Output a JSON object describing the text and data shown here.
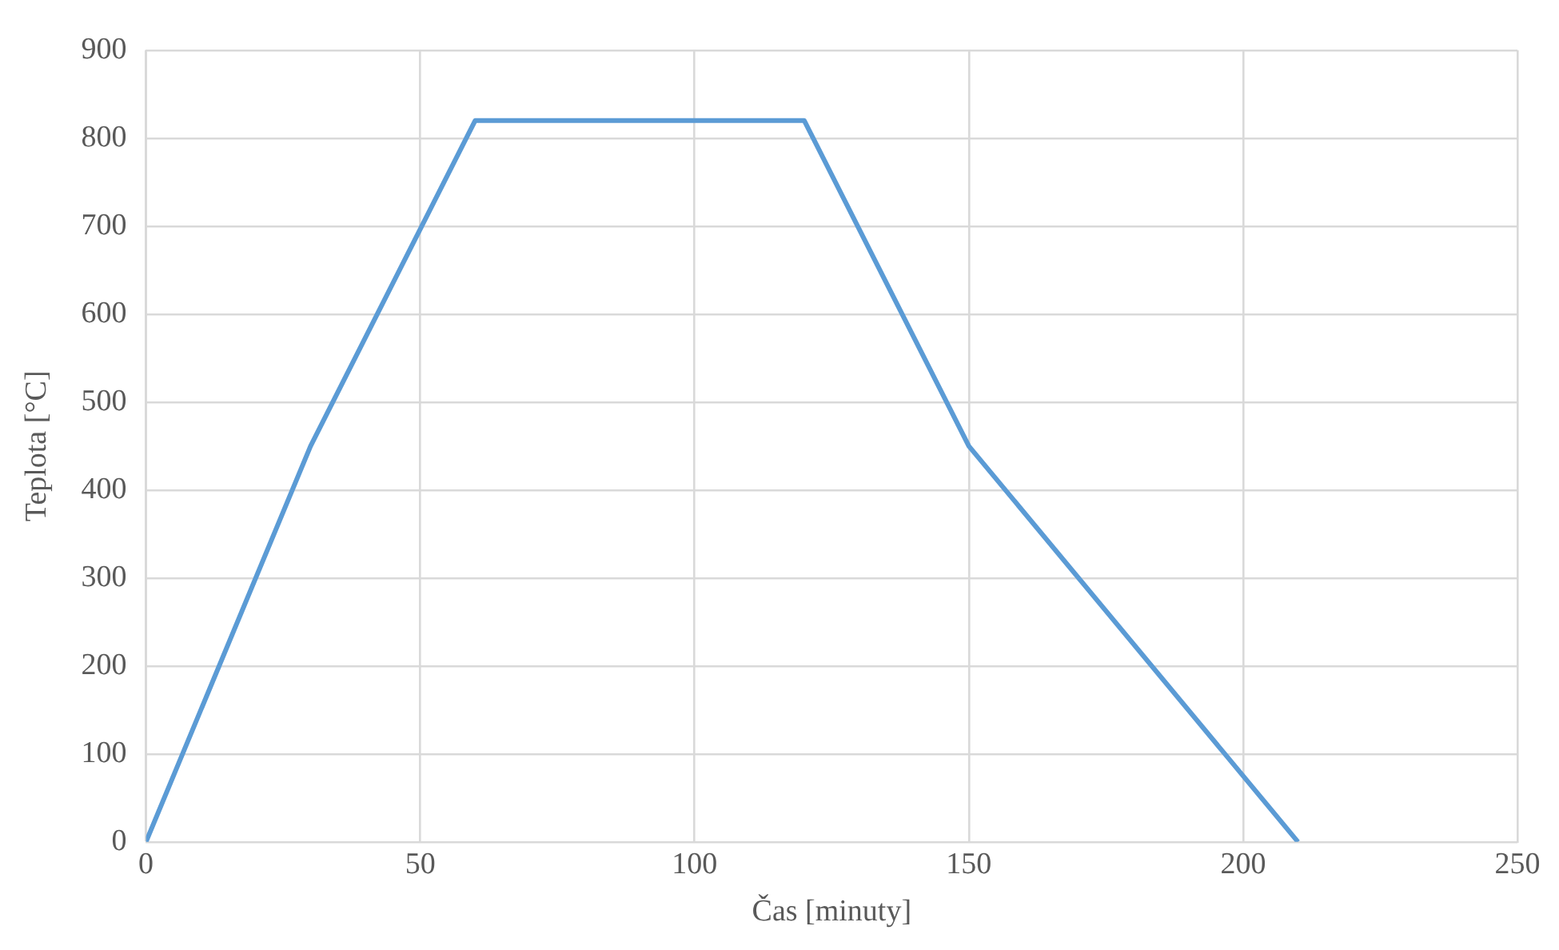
{
  "chart_data": {
    "type": "line",
    "xlabel": "Čas [minuty]",
    "ylabel": "Teplota [°C]",
    "series": [
      {
        "color": "#5b9bd5",
        "x": [
          0,
          30,
          60,
          120,
          150,
          210
        ],
        "values": [
          0,
          450,
          820,
          820,
          450,
          0
        ]
      }
    ],
    "xlim": [
      0,
      250
    ],
    "xticks": [
      0,
      50,
      100,
      150,
      200,
      250
    ],
    "ylim": [
      0,
      900
    ],
    "yticks": [
      0,
      100,
      200,
      300,
      400,
      500,
      600,
      700,
      800,
      900
    ],
    "grid": true,
    "legend": false,
    "marker": "none",
    "line_style": "solid"
  }
}
